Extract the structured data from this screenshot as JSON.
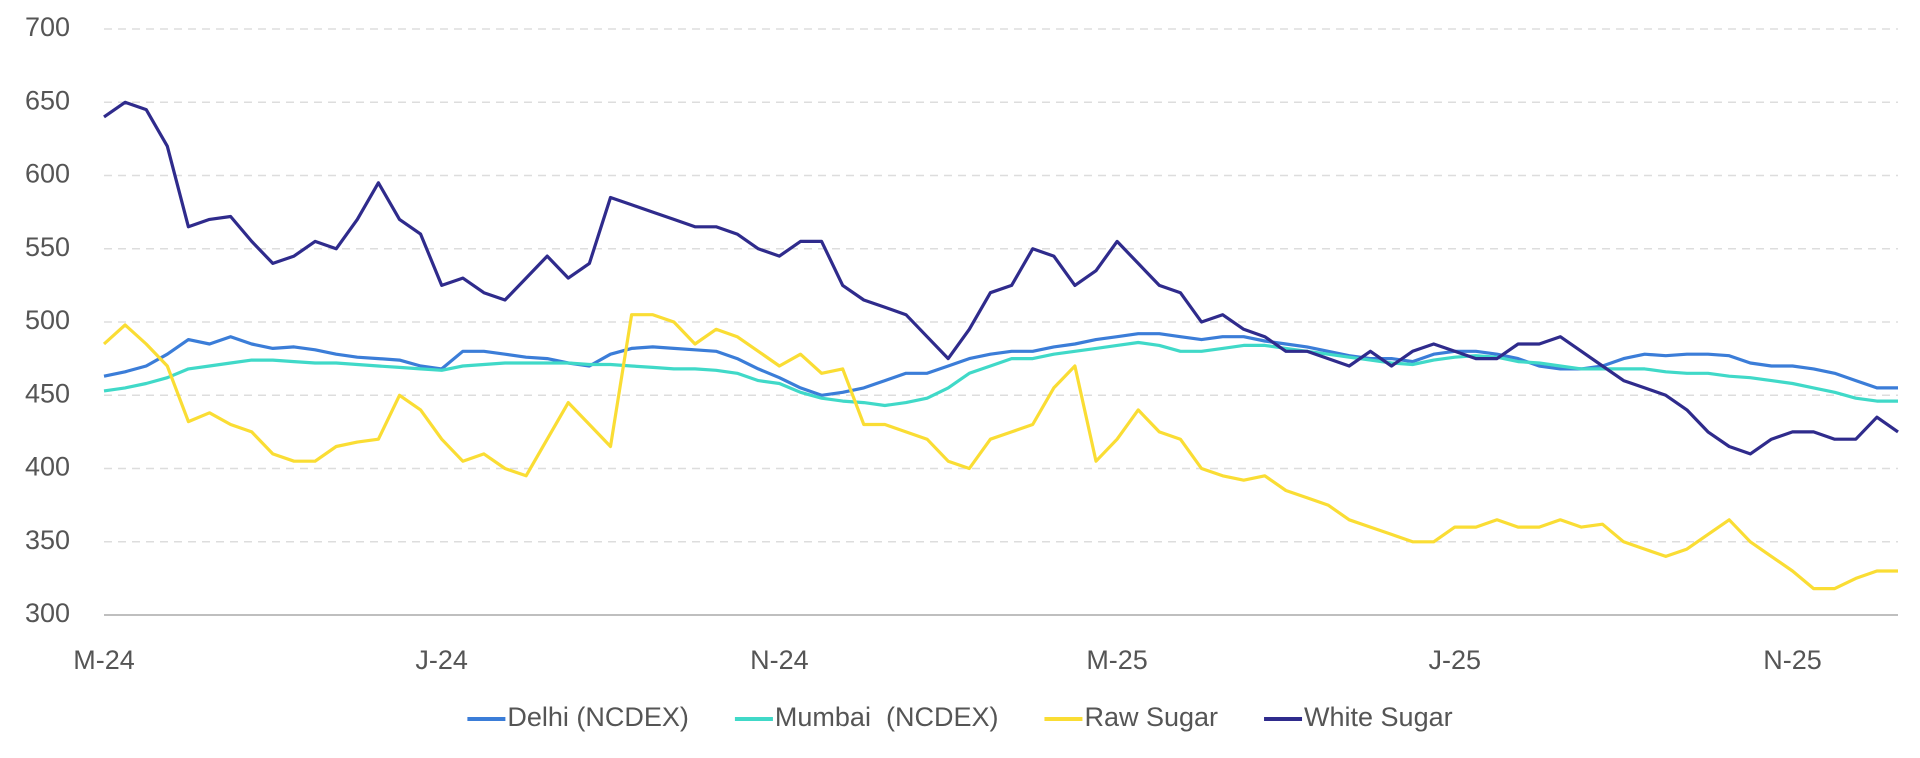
{
  "chart_data": {
    "type": "line",
    "categories": [
      "M-24",
      null,
      null,
      null,
      null,
      null,
      null,
      null,
      null,
      null,
      null,
      null,
      null,
      null,
      null,
      null,
      "J-24",
      null,
      null,
      null,
      null,
      null,
      null,
      null,
      null,
      null,
      null,
      null,
      null,
      null,
      null,
      null,
      "N-24",
      null,
      null,
      null,
      null,
      null,
      null,
      null,
      null,
      null,
      null,
      null,
      null,
      null,
      null,
      null,
      "M-25",
      null,
      null,
      null,
      null,
      null,
      null,
      null,
      null,
      null,
      null,
      null,
      null,
      null,
      null,
      null,
      "J-25",
      null,
      null,
      null,
      null,
      null,
      null,
      null,
      null,
      null,
      null,
      null,
      null,
      null,
      null,
      null,
      "N-25",
      null,
      null,
      null,
      null,
      null
    ],
    "series": [
      {
        "name": "Delhi (NCDEX)",
        "color": "#3b7dd8",
        "values": [
          463,
          466,
          470,
          478,
          488,
          485,
          490,
          485,
          482,
          483,
          481,
          478,
          476,
          475,
          474,
          470,
          468,
          480,
          480,
          478,
          476,
          475,
          472,
          470,
          478,
          482,
          483,
          482,
          481,
          480,
          475,
          468,
          462,
          455,
          450,
          452,
          455,
          460,
          465,
          465,
          470,
          475,
          478,
          480,
          480,
          483,
          485,
          488,
          490,
          492,
          492,
          490,
          488,
          490,
          490,
          487,
          485,
          483,
          480,
          477,
          475,
          475,
          473,
          478,
          480,
          480,
          478,
          475,
          470,
          468,
          468,
          470,
          475,
          478,
          477,
          478,
          478,
          477,
          472,
          470,
          470,
          468,
          465,
          460,
          455,
          455
        ]
      },
      {
        "name": "Mumbai  (NCDEX)",
        "color": "#40d9c8",
        "values": [
          453,
          455,
          458,
          462,
          468,
          470,
          472,
          474,
          474,
          473,
          472,
          472,
          471,
          470,
          469,
          468,
          467,
          470,
          471,
          472,
          472,
          472,
          472,
          471,
          471,
          470,
          469,
          468,
          468,
          467,
          465,
          460,
          458,
          452,
          448,
          446,
          445,
          443,
          445,
          448,
          455,
          465,
          470,
          475,
          475,
          478,
          480,
          482,
          484,
          486,
          484,
          480,
          480,
          482,
          484,
          484,
          482,
          480,
          478,
          476,
          474,
          472,
          471,
          474,
          476,
          477,
          476,
          473,
          472,
          470,
          468,
          468,
          468,
          468,
          466,
          465,
          465,
          463,
          462,
          460,
          458,
          455,
          452,
          448,
          446,
          446
        ]
      },
      {
        "name": "Raw Sugar",
        "color": "#fadd34",
        "values": [
          485,
          498,
          485,
          470,
          432,
          438,
          430,
          425,
          410,
          405,
          405,
          415,
          418,
          420,
          450,
          440,
          420,
          405,
          410,
          400,
          395,
          420,
          445,
          430,
          415,
          505,
          505,
          500,
          485,
          495,
          490,
          480,
          470,
          478,
          465,
          468,
          430,
          430,
          425,
          420,
          405,
          400,
          420,
          425,
          430,
          455,
          470,
          405,
          420,
          440,
          425,
          420,
          400,
          395,
          392,
          395,
          385,
          380,
          375,
          365,
          360,
          355,
          350,
          350,
          360,
          360,
          365,
          360,
          360,
          365,
          360,
          362,
          350,
          345,
          340,
          345,
          355,
          365,
          350,
          340,
          330,
          318,
          318,
          325,
          330,
          330
        ]
      },
      {
        "name": "White Sugar",
        "color": "#2f2b8c",
        "values": [
          640,
          650,
          645,
          620,
          565,
          570,
          572,
          555,
          540,
          545,
          555,
          550,
          570,
          595,
          570,
          560,
          525,
          530,
          520,
          515,
          530,
          545,
          530,
          540,
          585,
          580,
          575,
          570,
          565,
          565,
          560,
          550,
          545,
          555,
          555,
          525,
          515,
          510,
          505,
          490,
          475,
          495,
          520,
          525,
          550,
          545,
          525,
          535,
          555,
          540,
          525,
          520,
          500,
          505,
          495,
          490,
          480,
          480,
          475,
          470,
          480,
          470,
          480,
          485,
          480,
          475,
          475,
          485,
          485,
          490,
          480,
          470,
          460,
          455,
          450,
          440,
          425,
          415,
          410,
          420,
          425,
          425,
          420,
          420,
          435,
          425
        ]
      }
    ],
    "ylim": [
      300,
      700
    ],
    "yticks": [
      300,
      350,
      400,
      450,
      500,
      550,
      600,
      650,
      700
    ],
    "grid": true,
    "legend": "bottom"
  }
}
